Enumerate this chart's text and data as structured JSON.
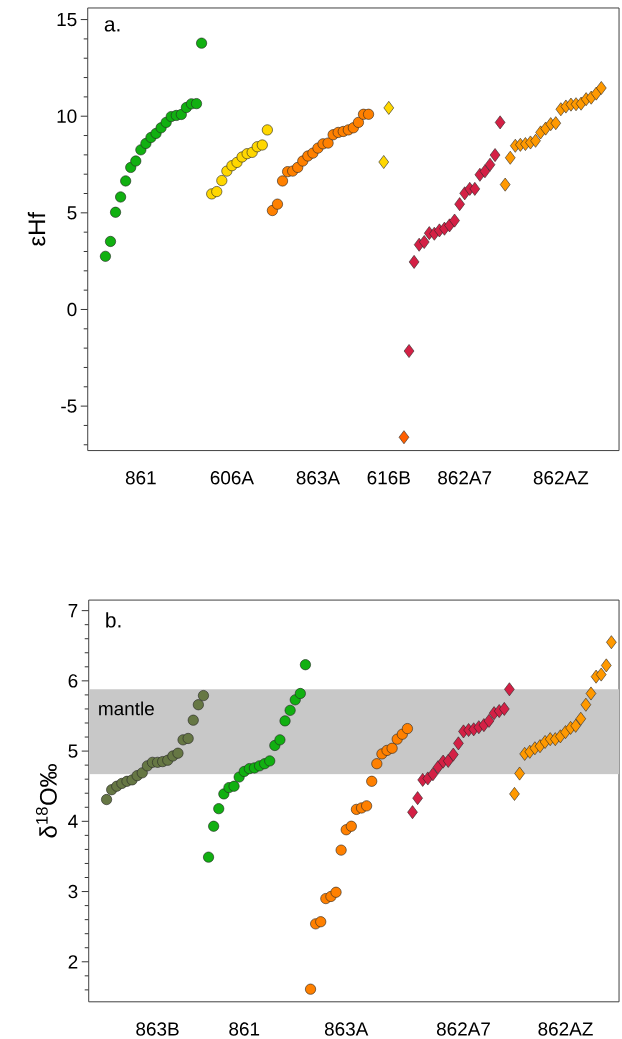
{
  "chart_data": [
    {
      "type": "scatter",
      "ylabel": "εHf",
      "annotations": [
        "a."
      ],
      "ylim": [
        -7.3,
        15.6
      ],
      "categories": [
        null,
        null,
        null,
        null,
        null,
        null,
        null,
        null,
        null,
        null,
        "861",
        null,
        null,
        null,
        null,
        null,
        null,
        null,
        null,
        null,
        null,
        null,
        null,
        null,
        null,
        null,
        null,
        null,
        "606A",
        null,
        null,
        null,
        null,
        null,
        null,
        null,
        null,
        null,
        null,
        null,
        null,
        null,
        null,
        null,
        null,
        "863A",
        null,
        null,
        null,
        null,
        null,
        null,
        null,
        null,
        null,
        null,
        null,
        null,
        null,
        "616B",
        null,
        null,
        null,
        null,
        null,
        null,
        null,
        null,
        null,
        null,
        null,
        null,
        null,
        null,
        "862A7",
        null,
        null,
        null,
        null,
        null,
        null,
        null,
        null,
        null,
        null,
        null,
        null,
        null,
        null,
        null,
        null,
        null,
        null,
        "862AZ",
        null,
        null,
        null,
        null,
        null,
        null,
        null,
        null,
        null,
        null,
        null
      ],
      "yticks": [
        {
          "value": -7,
          "label": null
        },
        {
          "value": -6,
          "label": null
        },
        -5,
        {
          "value": -4,
          "label": null
        },
        {
          "value": -3,
          "label": null
        },
        {
          "value": -2,
          "label": null
        },
        {
          "value": -1,
          "label": null
        },
        0,
        {
          "value": 1,
          "label": null
        },
        {
          "value": 2,
          "label": null
        },
        {
          "value": 3,
          "label": null
        },
        {
          "value": 4,
          "label": null
        },
        5,
        {
          "value": 6,
          "label": null
        },
        {
          "value": 7,
          "label": null
        },
        {
          "value": 8,
          "label": null
        },
        {
          "value": 9,
          "label": null
        },
        10,
        {
          "value": 11,
          "label": null
        },
        {
          "value": 12,
          "label": null
        },
        {
          "value": 13,
          "label": null
        },
        {
          "value": 14,
          "label": null
        },
        15
      ],
      "series": [
        {
          "color": "#11b011",
          "marker": "circle",
          "values": [
            null,
            null,
            null,
            2.75,
            3.52,
            5.03,
            5.82,
            6.65,
            7.35,
            7.68,
            8.26,
            8.59,
            8.9,
            9.11,
            9.4,
            9.68,
            9.98,
            10.04,
            10.09,
            10.45,
            10.64,
            10.65,
            13.78,
            null,
            null,
            null,
            null,
            null,
            null,
            null,
            null,
            null,
            null,
            null,
            null,
            null,
            null,
            null,
            null,
            null,
            null,
            null,
            null,
            null,
            null,
            null,
            null,
            null,
            null,
            null,
            null,
            null,
            null,
            null,
            null,
            null,
            null,
            null,
            null,
            null,
            null,
            null,
            null,
            null,
            null,
            null,
            null,
            null,
            null,
            null,
            null,
            null,
            null,
            null,
            null,
            null,
            null,
            null,
            null,
            null,
            null,
            null,
            null,
            null,
            null,
            null,
            null,
            null,
            null,
            null,
            null,
            null,
            null,
            null,
            null,
            null,
            null,
            null,
            null,
            null,
            null,
            null,
            null,
            null,
            null
          ]
        },
        {
          "color": "#ffd700",
          "marker": "circle",
          "values": [
            null,
            null,
            null,
            null,
            null,
            null,
            null,
            null,
            null,
            null,
            null,
            null,
            null,
            null,
            null,
            null,
            null,
            null,
            null,
            null,
            null,
            null,
            null,
            null,
            5.98,
            6.1,
            6.67,
            7.16,
            7.44,
            7.61,
            7.89,
            8.06,
            8.13,
            8.42,
            8.51,
            9.29,
            null,
            null,
            null,
            null,
            null,
            null,
            null,
            null,
            null,
            null,
            null,
            null,
            null,
            null,
            null,
            null,
            null,
            null,
            null,
            null,
            null,
            null,
            null,
            null,
            null,
            null,
            null,
            null,
            null,
            null,
            null,
            null,
            null,
            null,
            null,
            null,
            null,
            null,
            null,
            null,
            null,
            null,
            null,
            null,
            null,
            null,
            null,
            null,
            null,
            null,
            null,
            null,
            null,
            null,
            null,
            null,
            null,
            null,
            null,
            null,
            null,
            null,
            null,
            null,
            null,
            null,
            null,
            null,
            null
          ]
        },
        {
          "color": "#ff8000",
          "marker": "circle",
          "values": [
            null,
            null,
            null,
            null,
            null,
            null,
            null,
            null,
            null,
            null,
            null,
            null,
            null,
            null,
            null,
            null,
            null,
            null,
            null,
            null,
            null,
            null,
            null,
            null,
            null,
            null,
            null,
            null,
            null,
            null,
            null,
            null,
            null,
            null,
            null,
            null,
            5.12,
            5.45,
            6.65,
            7.13,
            7.16,
            7.35,
            7.68,
            7.94,
            8.09,
            8.35,
            8.57,
            8.61,
            9.04,
            9.16,
            9.21,
            9.29,
            9.4,
            9.68,
            10.1,
            10.1,
            null,
            null,
            null,
            null,
            null,
            null,
            null,
            null,
            null,
            null,
            null,
            null,
            null,
            null,
            null,
            null,
            null,
            null,
            null,
            null,
            null,
            null,
            null,
            null,
            null,
            null,
            null,
            null,
            null,
            null,
            null,
            null,
            null,
            null,
            null,
            null,
            null,
            null,
            null,
            null,
            null,
            null,
            null,
            null,
            null,
            null,
            null,
            null,
            null
          ]
        },
        {
          "color": "#ffd700",
          "marker": "diamond",
          "values": [
            null,
            null,
            null,
            null,
            null,
            null,
            null,
            null,
            null,
            null,
            null,
            null,
            null,
            null,
            null,
            null,
            null,
            null,
            null,
            null,
            null,
            null,
            null,
            null,
            null,
            null,
            null,
            null,
            null,
            null,
            null,
            null,
            null,
            null,
            null,
            null,
            null,
            null,
            null,
            null,
            null,
            null,
            null,
            null,
            null,
            null,
            null,
            null,
            null,
            null,
            null,
            null,
            null,
            null,
            null,
            null,
            null,
            null,
            7.63,
            10.43,
            null,
            null,
            null,
            null,
            null,
            null,
            null,
            null,
            null,
            null,
            null,
            null,
            null,
            null,
            null,
            null,
            null,
            null,
            null,
            null,
            null,
            null,
            null,
            null,
            null,
            null,
            null,
            null,
            null,
            null,
            null,
            null,
            null,
            null,
            null,
            null,
            null,
            null,
            null,
            null,
            null,
            null,
            null,
            null,
            null
          ]
        },
        {
          "color": "#ff5f00",
          "marker": "diamond",
          "values": [
            null,
            null,
            null,
            null,
            null,
            null,
            null,
            null,
            null,
            null,
            null,
            null,
            null,
            null,
            null,
            null,
            null,
            null,
            null,
            null,
            null,
            null,
            null,
            null,
            null,
            null,
            null,
            null,
            null,
            null,
            null,
            null,
            null,
            null,
            null,
            null,
            null,
            null,
            null,
            null,
            null,
            null,
            null,
            null,
            null,
            null,
            null,
            null,
            null,
            null,
            null,
            null,
            null,
            null,
            null,
            null,
            null,
            null,
            null,
            null,
            null,
            null,
            -6.61,
            null,
            null,
            null,
            null,
            null,
            null,
            null,
            null,
            null,
            null,
            null,
            null,
            null,
            null,
            null,
            null,
            null,
            null,
            null,
            null,
            null,
            null,
            null,
            null,
            null,
            null,
            null,
            null,
            null,
            null,
            null,
            null,
            null,
            null,
            null,
            null,
            null,
            null,
            null,
            null,
            null,
            null
          ]
        },
        {
          "color": "#d42045",
          "marker": "diamond",
          "values": [
            null,
            null,
            null,
            null,
            null,
            null,
            null,
            null,
            null,
            null,
            null,
            null,
            null,
            null,
            null,
            null,
            null,
            null,
            null,
            null,
            null,
            null,
            null,
            null,
            null,
            null,
            null,
            null,
            null,
            null,
            null,
            null,
            null,
            null,
            null,
            null,
            null,
            null,
            null,
            null,
            null,
            null,
            null,
            null,
            null,
            null,
            null,
            null,
            null,
            null,
            null,
            null,
            null,
            null,
            null,
            null,
            null,
            null,
            null,
            null,
            null,
            null,
            null,
            -2.15,
            2.46,
            3.35,
            3.49,
            3.95,
            3.92,
            4.09,
            4.18,
            4.35,
            4.6,
            5.45,
            6.01,
            6.24,
            6.24,
            6.97,
            7.15,
            7.49,
            7.99,
            9.68,
            null,
            null,
            null,
            null,
            null,
            null,
            null,
            null,
            null,
            null,
            null,
            null,
            null,
            null,
            null,
            null,
            null,
            null,
            null,
            null,
            null,
            null,
            null
          ]
        },
        {
          "color": "#ff9900",
          "marker": "diamond",
          "values": [
            null,
            null,
            null,
            null,
            null,
            null,
            null,
            null,
            null,
            null,
            null,
            null,
            null,
            null,
            null,
            null,
            null,
            null,
            null,
            null,
            null,
            null,
            null,
            null,
            null,
            null,
            null,
            null,
            null,
            null,
            null,
            null,
            null,
            null,
            null,
            null,
            null,
            null,
            null,
            null,
            null,
            null,
            null,
            null,
            null,
            null,
            null,
            null,
            null,
            null,
            null,
            null,
            null,
            null,
            null,
            null,
            null,
            null,
            null,
            null,
            null,
            null,
            null,
            null,
            null,
            null,
            null,
            null,
            null,
            null,
            null,
            null,
            null,
            null,
            null,
            null,
            null,
            null,
            null,
            null,
            null,
            null,
            6.46,
            7.85,
            8.47,
            8.52,
            8.56,
            8.64,
            8.73,
            9.16,
            9.36,
            9.59,
            9.64,
            10.36,
            10.5,
            10.6,
            10.62,
            10.65,
            10.88,
            10.96,
            11.17,
            11.46,
            null,
            null,
            null
          ]
        }
      ]
    },
    {
      "type": "scatter",
      "ylabel": "δ$^{18}$O‰",
      "annotations": [
        "b."
      ],
      "ylim": [
        1.43,
        7.15
      ],
      "categories": [
        null,
        null,
        null,
        null,
        null,
        null,
        null,
        null,
        null,
        null,
        null,
        null,
        null,
        "863B",
        null,
        null,
        null,
        null,
        null,
        null,
        null,
        null,
        null,
        null,
        null,
        null,
        null,
        null,
        null,
        null,
        "861",
        null,
        null,
        null,
        null,
        null,
        null,
        null,
        null,
        null,
        null,
        null,
        null,
        null,
        null,
        null,
        null,
        null,
        null,
        null,
        "863A",
        null,
        null,
        null,
        null,
        null,
        null,
        null,
        null,
        null,
        null,
        null,
        null,
        null,
        null,
        null,
        null,
        null,
        null,
        null,
        null,
        null,
        null,
        "862A7",
        null,
        null,
        null,
        null,
        null,
        null,
        null,
        null,
        null,
        null,
        null,
        null,
        null,
        null,
        null,
        null,
        null,
        null,
        null,
        "862AZ",
        null,
        null,
        null,
        null,
        null,
        null,
        null,
        null,
        null,
        null
      ],
      "yticks": [
        {
          "value": 1.6,
          "label": null
        },
        {
          "value": 1.8,
          "label": null
        },
        2,
        {
          "value": 2.2,
          "label": null
        },
        {
          "value": 2.4,
          "label": null
        },
        {
          "value": 2.6,
          "label": null
        },
        {
          "value": 2.8,
          "label": null
        },
        3,
        {
          "value": 3.2,
          "label": null
        },
        {
          "value": 3.4,
          "label": null
        },
        {
          "value": 3.6,
          "label": null
        },
        {
          "value": 3.8,
          "label": null
        },
        4,
        {
          "value": 4.2,
          "label": null
        },
        {
          "value": 4.4,
          "label": null
        },
        {
          "value": 4.6,
          "label": null
        },
        {
          "value": 4.8,
          "label": null
        },
        5,
        {
          "value": 5.2,
          "label": null
        },
        {
          "value": 5.4,
          "label": null
        },
        {
          "value": 5.6,
          "label": null
        },
        {
          "value": 5.8,
          "label": null
        },
        6,
        {
          "value": 6.2,
          "label": null
        },
        {
          "value": 6.4,
          "label": null
        },
        {
          "value": 6.6,
          "label": null
        },
        {
          "value": 6.8,
          "label": null
        },
        7
      ],
      "bands": [
        {
          "axis": "y",
          "from": 4.67,
          "to": 5.88,
          "label": "mantle",
          "color": "#c8c8c8"
        }
      ],
      "series": [
        {
          "color": "#667744",
          "marker": "circle",
          "values": [
            null,
            null,
            null,
            4.31,
            4.45,
            4.5,
            4.54,
            4.57,
            4.59,
            4.65,
            4.69,
            4.79,
            4.84,
            4.84,
            4.85,
            4.87,
            4.93,
            4.97,
            5.16,
            5.18,
            5.44,
            5.66,
            5.79,
            null,
            null,
            null,
            null,
            null,
            null,
            null,
            null,
            null,
            null,
            null,
            null,
            null,
            null,
            null,
            null,
            null,
            null,
            null,
            null,
            null,
            null,
            null,
            null,
            null,
            null,
            null,
            null,
            null,
            null,
            null,
            null,
            null,
            null,
            null,
            null,
            null,
            null,
            null,
            null,
            null,
            null,
            null,
            null,
            null,
            null,
            null,
            null,
            null,
            null,
            null,
            null,
            null,
            null,
            null,
            null,
            null,
            null,
            null,
            null,
            null,
            null,
            null,
            null,
            null,
            null,
            null,
            null,
            null,
            null,
            null,
            null,
            null,
            null,
            null,
            null,
            null,
            null,
            null,
            null,
            null
          ]
        },
        {
          "color": "#11b011",
          "marker": "circle",
          "values": [
            null,
            null,
            null,
            null,
            null,
            null,
            null,
            null,
            null,
            null,
            null,
            null,
            null,
            null,
            null,
            null,
            null,
            null,
            null,
            null,
            null,
            null,
            null,
            3.49,
            3.93,
            4.18,
            4.39,
            4.48,
            4.5,
            4.63,
            4.71,
            4.75,
            4.76,
            4.79,
            4.82,
            4.86,
            5.08,
            5.16,
            5.43,
            5.58,
            5.73,
            5.82,
            6.23,
            null,
            null,
            null,
            null,
            null,
            null,
            null,
            null,
            null,
            null,
            null,
            null,
            null,
            null,
            null,
            null,
            null,
            null,
            null,
            null,
            null,
            null,
            null,
            null,
            null,
            null,
            null,
            null,
            null,
            null,
            null,
            null,
            null,
            null,
            null,
            null,
            null,
            null,
            null,
            null,
            null,
            null,
            null,
            null,
            null,
            null,
            null,
            null,
            null,
            null,
            null,
            null,
            null,
            null,
            null,
            null,
            null,
            null,
            null,
            null,
            null
          ]
        },
        {
          "color": "#ff8000",
          "marker": "circle",
          "values": [
            null,
            null,
            null,
            null,
            null,
            null,
            null,
            null,
            null,
            null,
            null,
            null,
            null,
            null,
            null,
            null,
            null,
            null,
            null,
            null,
            null,
            null,
            null,
            null,
            null,
            null,
            null,
            null,
            null,
            null,
            null,
            null,
            null,
            null,
            null,
            null,
            null,
            null,
            null,
            null,
            null,
            null,
            null,
            1.61,
            2.54,
            2.57,
            2.9,
            2.93,
            2.99,
            3.59,
            3.88,
            3.93,
            4.17,
            4.19,
            4.22,
            4.57,
            4.82,
            4.96,
            5.01,
            5.04,
            5.17,
            5.24,
            5.32,
            null,
            null,
            null,
            null,
            null,
            null,
            null,
            null,
            null,
            null,
            null,
            null,
            null,
            null,
            null,
            null,
            null,
            null,
            null,
            null,
            null,
            null,
            null,
            null,
            null,
            null,
            null,
            null,
            null,
            null,
            null,
            null,
            null,
            null,
            null,
            null,
            null,
            null,
            null,
            null,
            null
          ]
        },
        {
          "color": "#d42045",
          "marker": "diamond",
          "values": [
            null,
            null,
            null,
            null,
            null,
            null,
            null,
            null,
            null,
            null,
            null,
            null,
            null,
            null,
            null,
            null,
            null,
            null,
            null,
            null,
            null,
            null,
            null,
            null,
            null,
            null,
            null,
            null,
            null,
            null,
            null,
            null,
            null,
            null,
            null,
            null,
            null,
            null,
            null,
            null,
            null,
            null,
            null,
            null,
            null,
            null,
            null,
            null,
            null,
            null,
            null,
            null,
            null,
            null,
            null,
            null,
            null,
            null,
            null,
            null,
            null,
            null,
            null,
            4.13,
            4.33,
            4.59,
            4.61,
            4.67,
            4.77,
            4.85,
            4.86,
            4.95,
            5.11,
            5.28,
            5.3,
            5.31,
            5.34,
            5.37,
            5.43,
            5.54,
            5.57,
            5.6,
            5.88,
            null,
            null,
            null,
            null,
            null,
            null,
            null,
            null,
            null,
            null,
            null,
            null,
            null,
            null,
            null,
            null,
            null,
            null,
            null,
            null,
            null
          ]
        },
        {
          "color": "#ff9900",
          "marker": "diamond",
          "values": [
            null,
            null,
            null,
            null,
            null,
            null,
            null,
            null,
            null,
            null,
            null,
            null,
            null,
            null,
            null,
            null,
            null,
            null,
            null,
            null,
            null,
            null,
            null,
            null,
            null,
            null,
            null,
            null,
            null,
            null,
            null,
            null,
            null,
            null,
            null,
            null,
            null,
            null,
            null,
            null,
            null,
            null,
            null,
            null,
            null,
            null,
            null,
            null,
            null,
            null,
            null,
            null,
            null,
            null,
            null,
            null,
            null,
            null,
            null,
            null,
            null,
            null,
            null,
            null,
            null,
            null,
            null,
            null,
            null,
            null,
            null,
            null,
            null,
            null,
            null,
            null,
            null,
            null,
            null,
            null,
            null,
            null,
            null,
            4.39,
            4.68,
            4.96,
            4.99,
            5.04,
            5.07,
            5.13,
            5.17,
            5.17,
            5.21,
            5.27,
            5.33,
            5.36,
            5.46,
            5.66,
            5.82,
            6.06,
            6.09,
            6.22,
            6.55,
            null
          ]
        }
      ]
    }
  ]
}
